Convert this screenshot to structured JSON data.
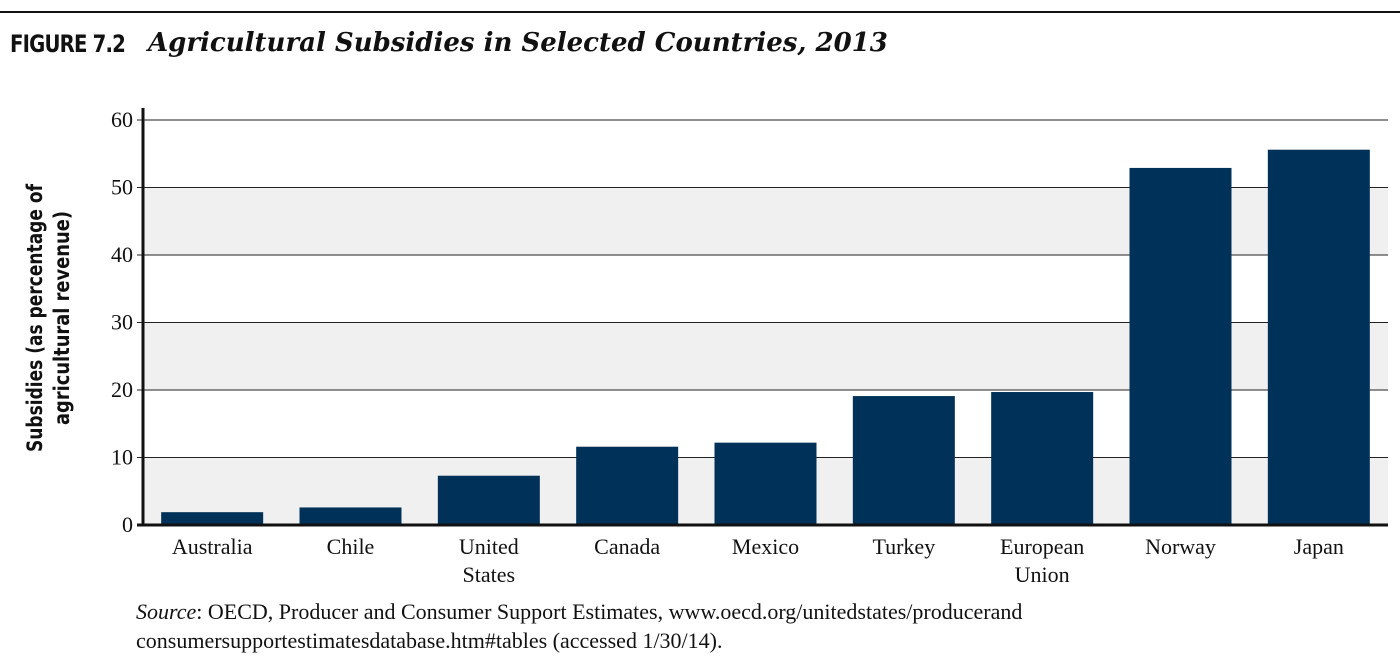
{
  "figure": {
    "label": "FIGURE 7.2",
    "title": "Agricultural Subsidies in Selected Countries, 2013"
  },
  "source": {
    "label": "Source",
    "line1": ": OECD, Producer and Consumer Support Estimates, www.oecd.org/unitedstates/producerand",
    "line2": "consumersupportestimatesdatabase.htm#tables (accessed 1/30/14)."
  },
  "chart_data": {
    "type": "bar",
    "title": "Agricultural Subsidies in Selected Countries, 2013",
    "ylabel_lines": [
      "Subsidies (as percentage of",
      "agricultural revenue)"
    ],
    "xlabel": "",
    "categories": [
      [
        "Australia"
      ],
      [
        "Chile"
      ],
      [
        "United",
        "States"
      ],
      [
        "Canada"
      ],
      [
        "Mexico"
      ],
      [
        "Turkey"
      ],
      [
        "European",
        "Union"
      ],
      [
        "Norway"
      ],
      [
        "Japan"
      ]
    ],
    "values": [
      1.9,
      2.6,
      7.3,
      11.6,
      12.2,
      19.1,
      19.7,
      52.9,
      55.6
    ],
    "ylim": [
      0,
      60
    ],
    "yticks": [
      0,
      10,
      20,
      30,
      40,
      50,
      60
    ],
    "grid": true,
    "colors": {
      "bar": "#003259",
      "band": "#f0f0f0",
      "grid": "#222222",
      "axis": "#111111"
    }
  }
}
